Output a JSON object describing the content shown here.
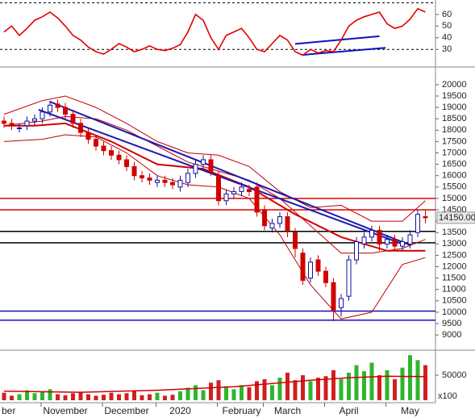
{
  "chart_data": [
    {
      "type": "line",
      "panel": "rsi",
      "ylim": [
        17,
        71
      ],
      "yticks": [
        30,
        40,
        50,
        60
      ],
      "guides": [
        30,
        70
      ],
      "series": [
        {
          "color": "#e00000",
          "values": [
            45,
            50,
            42,
            48,
            55,
            58,
            62,
            57,
            50,
            42,
            38,
            32,
            28,
            26,
            30,
            35,
            32,
            28,
            30,
            33,
            30,
            29,
            31,
            34,
            45,
            60,
            55,
            40,
            30,
            42,
            45,
            48,
            40,
            30,
            28,
            35,
            42,
            38,
            28,
            25,
            30,
            27,
            29,
            28,
            38,
            50,
            55,
            58,
            60,
            62,
            52,
            48,
            50,
            56,
            65,
            62
          ]
        }
      ],
      "trendlines": [
        {
          "x": [
            38,
            49
          ],
          "values": [
            34.7,
            41.3
          ],
          "color": "#1010c0"
        },
        {
          "x": [
            39,
            49.8
          ],
          "values": [
            25.3,
            31.3
          ],
          "color": "#1010c0"
        }
      ]
    },
    {
      "type": "candlestick",
      "panel": "price",
      "ylim": [
        8400,
        20600
      ],
      "yticks": [
        9000,
        9500,
        10000,
        10500,
        11000,
        11500,
        12000,
        12500,
        13000,
        13500,
        14000,
        14500,
        15000,
        15500,
        16000,
        16500,
        17000,
        17500,
        18000,
        18500,
        19000,
        19500,
        20000
      ],
      "open": [
        18400,
        18300,
        18100,
        18200,
        18400,
        18500,
        18800,
        19150,
        19000,
        18700,
        18300,
        17900,
        17600,
        17300,
        17100,
        16900,
        16700,
        16400,
        16000,
        15900,
        15700,
        15800,
        15700,
        15500,
        15700,
        16100,
        16500,
        16700,
        16000,
        14900,
        15200,
        15300,
        15400,
        15500,
        14500,
        13700,
        13900,
        14200,
        13500,
        12600,
        11500,
        12300,
        11800,
        11300,
        10200,
        10700,
        12300,
        13000,
        13300,
        13600,
        13000,
        13200,
        12900,
        13000,
        13500,
        14200
      ],
      "high": [
        18600,
        18500,
        18300,
        18600,
        18700,
        19000,
        19300,
        19350,
        19200,
        18900,
        18500,
        18100,
        17800,
        17500,
        17300,
        17100,
        16900,
        16600,
        16200,
        16100,
        16000,
        16000,
        15900,
        16000,
        16300,
        16700,
        16900,
        16900,
        16200,
        15400,
        15500,
        15700,
        15600,
        15700,
        14700,
        14100,
        14400,
        14400,
        13700,
        12800,
        12400,
        12500,
        12000,
        11500,
        10800,
        12500,
        13300,
        13500,
        13800,
        13800,
        13400,
        13400,
        13300,
        13600,
        14500,
        14500
      ],
      "low": [
        18100,
        18000,
        17900,
        18000,
        18200,
        18300,
        18600,
        18800,
        18500,
        18100,
        17700,
        17400,
        17100,
        16900,
        16700,
        16500,
        16200,
        15800,
        15700,
        15600,
        15500,
        15500,
        15400,
        15300,
        15500,
        15900,
        16300,
        16000,
        14700,
        14700,
        15000,
        15100,
        15100,
        14200,
        13600,
        13500,
        13700,
        13300,
        12400,
        11200,
        11300,
        11600,
        11100,
        9600,
        9800,
        10500,
        12100,
        12800,
        13100,
        12700,
        12800,
        12700,
        12700,
        12800,
        13300,
        13900
      ],
      "close": [
        18300,
        18200,
        18100,
        18400,
        18500,
        18800,
        19100,
        19000,
        18700,
        18300,
        17900,
        17600,
        17300,
        17100,
        16900,
        16700,
        16400,
        16000,
        15900,
        15800,
        15800,
        15700,
        15600,
        15800,
        16100,
        16500,
        16700,
        16200,
        14900,
        15200,
        15300,
        15500,
        15300,
        14400,
        13800,
        13900,
        14200,
        13600,
        12800,
        11400,
        12200,
        11800,
        11300,
        10100,
        10600,
        12300,
        13100,
        13300,
        13600,
        13000,
        13200,
        12900,
        13100,
        13400,
        14300,
        14150
      ],
      "price_label": {
        "value": 14150,
        "label": "14150.00"
      },
      "overlays": [
        {
          "x": [
            0,
            5,
            8,
            12,
            16,
            20,
            24,
            28,
            32,
            36,
            40,
            44,
            48,
            52,
            55
          ],
          "values": [
            18700,
            19300,
            19500,
            19000,
            18300,
            17500,
            17000,
            16900,
            16400,
            15300,
            14600,
            14700,
            14000,
            14000,
            14900
          ],
          "color": "#c00000"
        },
        {
          "x": [
            0,
            5,
            8,
            12,
            16,
            20,
            24,
            28,
            32,
            36,
            40,
            44,
            48,
            52,
            55
          ],
          "values": [
            18200,
            18400,
            18600,
            18500,
            18000,
            17300,
            16600,
            16200,
            15800,
            15000,
            13800,
            12600,
            12600,
            12800,
            13200
          ],
          "color": "#c00000"
        },
        {
          "x": [
            0,
            5,
            8,
            12,
            16,
            20,
            24,
            28,
            32,
            36,
            40,
            44,
            48,
            52,
            55
          ],
          "values": [
            17500,
            17600,
            17800,
            17700,
            17000,
            16000,
            15600,
            15500,
            15000,
            13400,
            11200,
            9700,
            10000,
            12100,
            12400
          ],
          "color": "#c00000"
        },
        {
          "x": [
            0,
            4,
            8,
            14,
            20,
            26,
            32,
            38,
            44,
            50,
            55
          ],
          "values": [
            18200,
            18200,
            18300,
            17500,
            16500,
            16300,
            15500,
            14300,
            13300,
            12700,
            12700
          ],
          "color": "#d00000",
          "width": 2
        }
      ],
      "trendlines": [
        {
          "x": [
            6,
            53
          ],
          "values": [
            19250,
            12950
          ],
          "color": "#1a1ab0"
        },
        {
          "x": [
            4.5,
            52
          ],
          "values": [
            18900,
            13000
          ],
          "color": "#1a1ab0"
        }
      ],
      "hlines": [
        {
          "value": 15000,
          "color": "#e00000"
        },
        {
          "value": 14500,
          "color": "#e00000"
        },
        {
          "value": 13550,
          "color": "#000000"
        },
        {
          "value": 13050,
          "color": "#000000"
        },
        {
          "value": 10050,
          "color": "#1010c0"
        },
        {
          "value": 9650,
          "color": "#1010c0"
        }
      ]
    },
    {
      "type": "bar",
      "panel": "volume",
      "ylim": [
        0,
        95000
      ],
      "yticks": [
        50000
      ],
      "y_label": "x100",
      "categories": [
        "ber",
        null,
        null,
        null,
        null,
        null,
        null,
        null,
        "November",
        null,
        null,
        null,
        null,
        null,
        null,
        null,
        "December",
        null,
        null,
        null,
        null,
        null,
        null,
        "2020",
        null,
        null,
        null,
        null,
        null,
        null,
        null,
        "February",
        null,
        null,
        null,
        null,
        null,
        "March",
        null,
        null,
        null,
        null,
        null,
        null,
        null,
        "April",
        null,
        null,
        null,
        null,
        null,
        null,
        null,
        "May",
        null,
        null
      ],
      "values": [
        15000,
        9000,
        12000,
        20000,
        14000,
        18000,
        22000,
        12000,
        10000,
        14000,
        16000,
        12000,
        9000,
        11000,
        15000,
        12000,
        14000,
        18000,
        10000,
        12000,
        15000,
        9000,
        11000,
        18000,
        25000,
        30000,
        20000,
        35000,
        40000,
        28000,
        22000,
        30000,
        26000,
        38000,
        42000,
        30000,
        45000,
        55000,
        40000,
        50000,
        38000,
        45000,
        48000,
        60000,
        42000,
        55000,
        70000,
        58000,
        75000,
        50000,
        60000,
        42000,
        65000,
        90000,
        80000,
        70000
      ],
      "up_color": "#2fb52f",
      "down_color": "#d02020",
      "ma": {
        "x": [
          0,
          10,
          20,
          30,
          40,
          45,
          50,
          55
        ],
        "values": [
          18000,
          16000,
          20000,
          27000,
          40000,
          45000,
          48000,
          47000
        ],
        "color": "#d00000"
      }
    }
  ]
}
